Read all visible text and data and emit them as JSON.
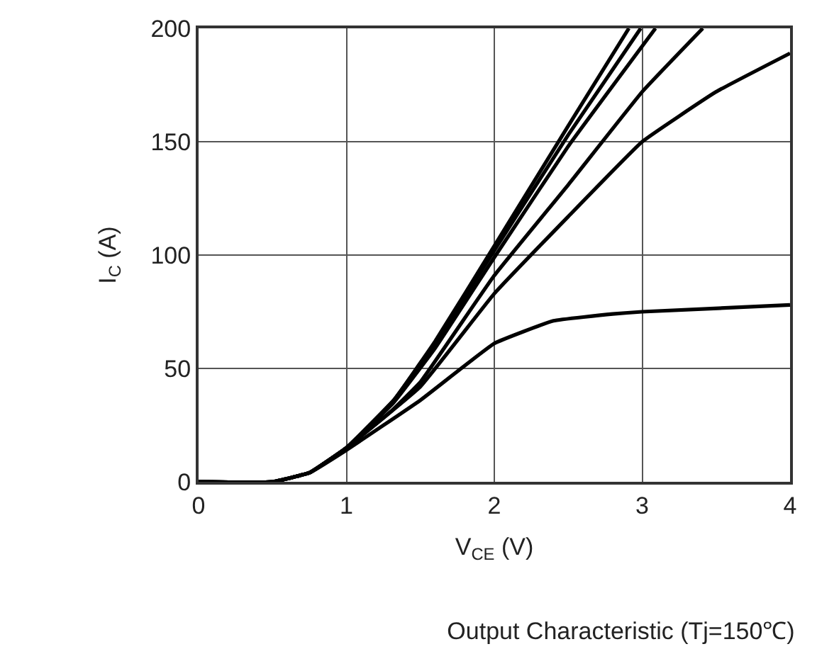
{
  "chart_data": {
    "type": "line",
    "title": "Output Characteristic (Tj=150℃)",
    "xlabel": "V$_{CE}$ (V)",
    "ylabel": "I$_{C}$ (A)",
    "xlim": [
      0,
      4
    ],
    "ylim": [
      0,
      200
    ],
    "xticks": [
      0,
      1,
      2,
      3,
      4
    ],
    "yticks": [
      0,
      50,
      100,
      150,
      200
    ],
    "grid": true,
    "marker": "none",
    "line_style": "solid",
    "series": [
      {
        "color": "#000000",
        "x": [
          0,
          0.5,
          0.75,
          1.0,
          1.32,
          1.6,
          2.0,
          2.5,
          2.91
        ],
        "values": [
          0,
          0,
          4,
          15,
          36,
          62,
          104,
          157,
          200
        ]
      },
      {
        "color": "#000000",
        "x": [
          0,
          0.5,
          0.75,
          1.0,
          1.32,
          1.6,
          2.0,
          2.5,
          2.99
        ],
        "values": [
          0,
          0,
          4,
          15,
          36,
          61,
          102,
          153,
          200
        ]
      },
      {
        "color": "#000000",
        "x": [
          0,
          0.5,
          0.75,
          1.0,
          1.32,
          1.6,
          2.0,
          2.5,
          3.09
        ],
        "values": [
          0,
          0,
          4,
          15,
          35,
          59,
          99,
          148,
          200
        ]
      },
      {
        "color": "#000000",
        "x": [
          0,
          0.5,
          0.75,
          1.0,
          1.3,
          1.5,
          2.0,
          2.5,
          3.0,
          3.41
        ],
        "values": [
          0,
          0,
          4,
          15,
          31,
          44,
          91,
          131,
          172,
          200
        ]
      },
      {
        "color": "#000000",
        "x": [
          0,
          0.5,
          0.75,
          1.0,
          1.5,
          2.0,
          2.5,
          3.0,
          3.5,
          4.0
        ],
        "values": [
          0,
          0,
          4,
          15,
          42,
          83,
          117,
          150,
          172,
          189
        ]
      },
      {
        "color": "#000000",
        "x": [
          0,
          0.5,
          0.75,
          1.0,
          1.5,
          2.0,
          2.4,
          2.8,
          3.0,
          4.0
        ],
        "values": [
          0,
          0,
          4,
          14,
          36,
          61,
          71,
          74,
          75,
          78
        ]
      }
    ]
  }
}
